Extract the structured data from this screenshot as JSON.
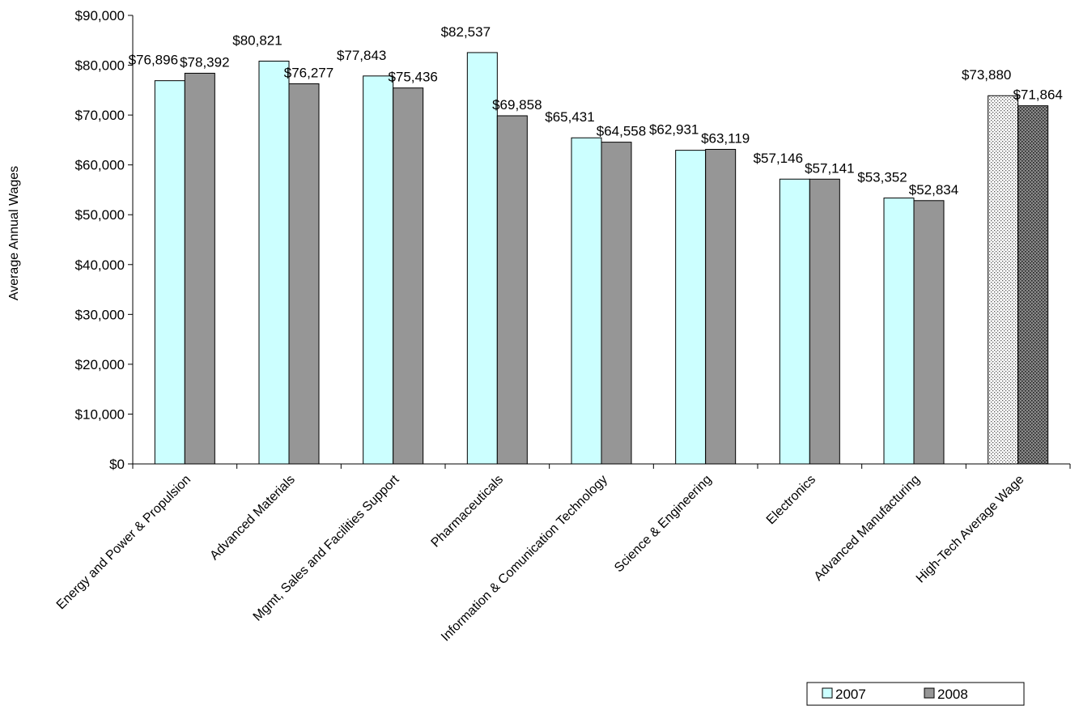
{
  "chart_data": {
    "type": "bar",
    "title": "",
    "xlabel": "",
    "ylabel": "Average Annual Wages",
    "ylim": [
      0,
      90000
    ],
    "yticks": [
      "$0",
      "$10,000",
      "$20,000",
      "$30,000",
      "$40,000",
      "$50,000",
      "$60,000",
      "$70,000",
      "$80,000",
      "$90,000"
    ],
    "grid": false,
    "legend_position": "bottom-right",
    "categories": [
      "Energy and Power & Propulsion",
      "Advanced Materials",
      "Mgmt, Sales and Facilities Support",
      "Pharmaceuticals",
      "Information & Comunication Technology",
      "Science & Engineering",
      "Electronics",
      "Advanced Manufacturing",
      "High-Tech Average Wage"
    ],
    "series": [
      {
        "name": "2007",
        "color": "#ccffff",
        "values": [
          76896,
          80821,
          77843,
          82537,
          65431,
          62931,
          57146,
          53352,
          73880
        ],
        "labels": [
          "$76,896",
          "$80,821",
          "$77,843",
          "$82,537",
          "$65,431",
          "$62,931",
          "$57,146",
          "$53,352",
          "$73,880"
        ]
      },
      {
        "name": "2008",
        "color": "#969696",
        "values": [
          78392,
          76277,
          75436,
          69858,
          64558,
          63119,
          57141,
          52834,
          71864
        ],
        "labels": [
          "$78,392",
          "$76,277",
          "$75,436",
          "$69,858",
          "$64,558",
          "$63,119",
          "$57,141",
          "$52,834",
          "$71,864"
        ]
      }
    ],
    "highlight_category": "High-Tech Average Wage"
  }
}
